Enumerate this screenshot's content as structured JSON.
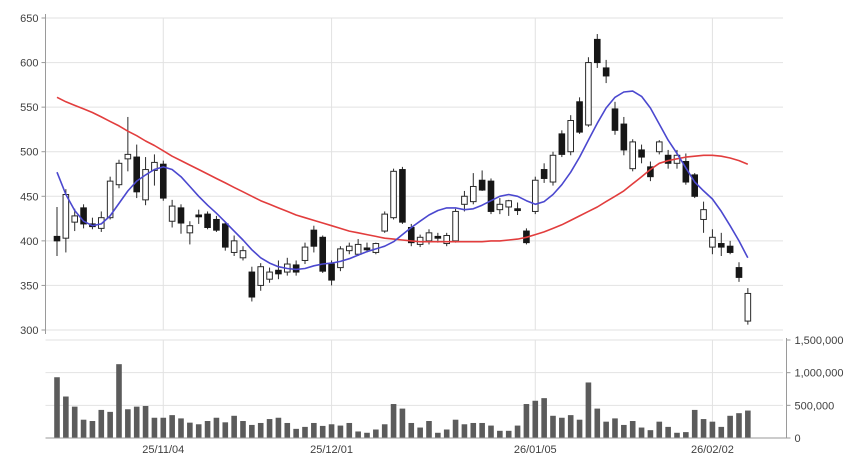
{
  "chart_data": {
    "type": "candlestick",
    "title": "",
    "grid": true,
    "panes": [
      "price",
      "volume"
    ],
    "price_axis": {
      "side": "left",
      "range": [
        300,
        650
      ],
      "ticks": [
        650,
        600,
        550,
        500,
        450,
        400,
        350,
        300
      ],
      "tick_labels": [
        "650",
        "600",
        "550",
        "500",
        "450",
        "400",
        "350",
        "300"
      ]
    },
    "volume_axis": {
      "side": "right",
      "range": [
        0,
        1500000
      ],
      "ticks": [
        1500000,
        1000000,
        500000,
        0
      ],
      "tick_labels": [
        "1,500,000",
        "1,000,000",
        "500,000",
        "0"
      ]
    },
    "x_axis": {
      "tick_labels": [
        {
          "label": "25/11/04",
          "index": 12
        },
        {
          "label": "25/12/01",
          "index": 31
        },
        {
          "label": "26/01/05",
          "index": 54
        },
        {
          "label": "26/02/02",
          "index": 74
        }
      ]
    },
    "series": [
      {
        "name": "ohlc",
        "type": "candlestick",
        "up_color": "#ffffff",
        "up_stroke": "#2a2a2a",
        "down_color": "#161616",
        "values": [
          [
            405,
            438,
            383,
            400
          ],
          [
            403,
            458,
            387,
            452
          ],
          [
            421,
            436,
            411,
            428
          ],
          [
            437,
            441,
            414,
            419
          ],
          [
            419,
            426,
            413,
            416
          ],
          [
            414,
            433,
            410,
            426
          ],
          [
            426,
            472,
            424,
            467
          ],
          [
            463,
            491,
            459,
            487
          ],
          [
            492,
            539,
            478,
            497
          ],
          [
            494,
            508,
            448,
            455
          ],
          [
            446,
            494,
            440,
            480
          ],
          [
            479,
            497,
            462,
            488
          ],
          [
            486,
            490,
            445,
            448
          ],
          [
            422,
            446,
            415,
            439
          ],
          [
            437,
            441,
            408,
            420
          ],
          [
            409,
            422,
            396,
            417
          ],
          [
            429,
            435,
            419,
            427
          ],
          [
            430,
            433,
            413,
            415
          ],
          [
            424,
            428,
            410,
            412
          ],
          [
            419,
            421,
            389,
            393
          ],
          [
            387,
            406,
            383,
            400
          ],
          [
            381,
            394,
            378,
            389
          ],
          [
            365,
            371,
            332,
            337
          ],
          [
            350,
            375,
            344,
            371
          ],
          [
            357,
            370,
            353,
            365
          ],
          [
            367,
            378,
            357,
            363
          ],
          [
            365,
            381,
            361,
            374
          ],
          [
            373,
            378,
            361,
            365
          ],
          [
            378,
            398,
            374,
            393
          ],
          [
            412,
            417,
            387,
            394
          ],
          [
            404,
            406,
            364,
            366
          ],
          [
            374,
            378,
            350,
            356
          ],
          [
            370,
            394,
            366,
            391
          ],
          [
            389,
            398,
            385,
            394
          ],
          [
            385,
            402,
            383,
            396
          ],
          [
            392,
            398,
            387,
            390
          ],
          [
            387,
            398,
            385,
            397
          ],
          [
            411,
            433,
            409,
            430
          ],
          [
            426,
            481,
            424,
            478
          ],
          [
            480,
            483,
            419,
            421
          ],
          [
            415,
            419,
            394,
            398
          ],
          [
            396,
            407,
            393,
            404
          ],
          [
            400,
            413,
            396,
            409
          ],
          [
            405,
            409,
            398,
            403
          ],
          [
            397,
            409,
            394,
            406
          ],
          [
            400,
            436,
            398,
            433
          ],
          [
            441,
            456,
            433,
            450
          ],
          [
            444,
            476,
            441,
            461
          ],
          [
            468,
            479,
            456,
            457
          ],
          [
            467,
            470,
            430,
            433
          ],
          [
            435,
            448,
            430,
            441
          ],
          [
            438,
            446,
            428,
            445
          ],
          [
            436,
            443,
            429,
            434
          ],
          [
            411,
            414,
            396,
            398
          ],
          [
            433,
            472,
            430,
            468
          ],
          [
            480,
            487,
            465,
            470
          ],
          [
            466,
            500,
            462,
            496
          ],
          [
            520,
            524,
            494,
            497
          ],
          [
            500,
            541,
            496,
            535
          ],
          [
            556,
            561,
            520,
            522
          ],
          [
            530,
            606,
            528,
            600
          ],
          [
            626,
            632,
            594,
            600
          ],
          [
            594,
            603,
            577,
            585
          ],
          [
            548,
            556,
            519,
            524
          ],
          [
            531,
            539,
            496,
            502
          ],
          [
            481,
            514,
            478,
            511
          ],
          [
            502,
            508,
            487,
            494
          ],
          [
            483,
            489,
            467,
            472
          ],
          [
            500,
            513,
            497,
            511
          ],
          [
            496,
            502,
            481,
            487
          ],
          [
            487,
            502,
            481,
            496
          ],
          [
            489,
            498,
            463,
            466
          ],
          [
            474,
            476,
            448,
            450
          ],
          [
            424,
            444,
            409,
            435
          ],
          [
            393,
            413,
            385,
            404
          ],
          [
            397,
            409,
            383,
            393
          ],
          [
            394,
            400,
            385,
            387
          ],
          [
            370,
            376,
            354,
            359
          ],
          [
            310,
            347,
            306,
            341
          ]
        ]
      },
      {
        "name": "volume",
        "type": "bar",
        "color": "#5b5b5b",
        "values": [
          930000,
          635000,
          480000,
          280000,
          260000,
          430000,
          400000,
          1130000,
          440000,
          480000,
          490000,
          310000,
          310000,
          350000,
          300000,
          235000,
          210000,
          260000,
          310000,
          240000,
          340000,
          260000,
          200000,
          230000,
          290000,
          310000,
          230000,
          140000,
          170000,
          230000,
          185000,
          210000,
          190000,
          230000,
          100000,
          80000,
          130000,
          210000,
          520000,
          450000,
          230000,
          160000,
          260000,
          80000,
          130000,
          280000,
          210000,
          230000,
          230000,
          190000,
          110000,
          110000,
          190000,
          520000,
          570000,
          610000,
          340000,
          310000,
          350000,
          280000,
          850000,
          450000,
          250000,
          300000,
          200000,
          260000,
          160000,
          120000,
          250000,
          170000,
          80000,
          90000,
          430000,
          290000,
          250000,
          170000,
          340000,
          380000,
          420000
        ]
      },
      {
        "name": "ma-fast",
        "type": "line",
        "color": "#4b48cf",
        "values": [
          477,
          452,
          434,
          422,
          417,
          419,
          428,
          442,
          456,
          467,
          474,
          480,
          483,
          480,
          472,
          461,
          450,
          440,
          431,
          421,
          411,
          401,
          390,
          381,
          375,
          371,
          369,
          368,
          369,
          372,
          374,
          375,
          377,
          380,
          384,
          388,
          391,
          394,
          399,
          407,
          415,
          422,
          429,
          434,
          437,
          437,
          435,
          436,
          440,
          445,
          450,
          452,
          450,
          445,
          441,
          444,
          452,
          463,
          477,
          494,
          513,
          532,
          549,
          561,
          567,
          568,
          562,
          549,
          531,
          513,
          498,
          482,
          466,
          456,
          447,
          433,
          417,
          400,
          381
        ]
      },
      {
        "name": "ma-slow",
        "type": "line",
        "color": "#e23d3d",
        "values": [
          561,
          556,
          552,
          548,
          544,
          539,
          534,
          529,
          523,
          518,
          512,
          507,
          501,
          495,
          490,
          485,
          480,
          475,
          470,
          465,
          460,
          455,
          450,
          445,
          441,
          437,
          433,
          429,
          426,
          423,
          420,
          417,
          414,
          411,
          409,
          407,
          405,
          403,
          402,
          401,
          400,
          399,
          399,
          399,
          399,
          399,
          399,
          399,
          399,
          400,
          400,
          401,
          402,
          404,
          407,
          410,
          414,
          418,
          423,
          428,
          433,
          438,
          444,
          450,
          456,
          464,
          472,
          480,
          487,
          490,
          492,
          494,
          495,
          496,
          496,
          495,
          493,
          490,
          486
        ]
      }
    ]
  },
  "colors": {
    "background": "#ffffff",
    "grid": "#e2e2e2",
    "axis": "#9a9a9a",
    "tick_text": "#404040",
    "up_candle": "#ffffff",
    "down_candle": "#161616",
    "volume_bar": "#5b5b5b",
    "ma_fast": "#4b48cf",
    "ma_slow": "#e23d3d"
  }
}
